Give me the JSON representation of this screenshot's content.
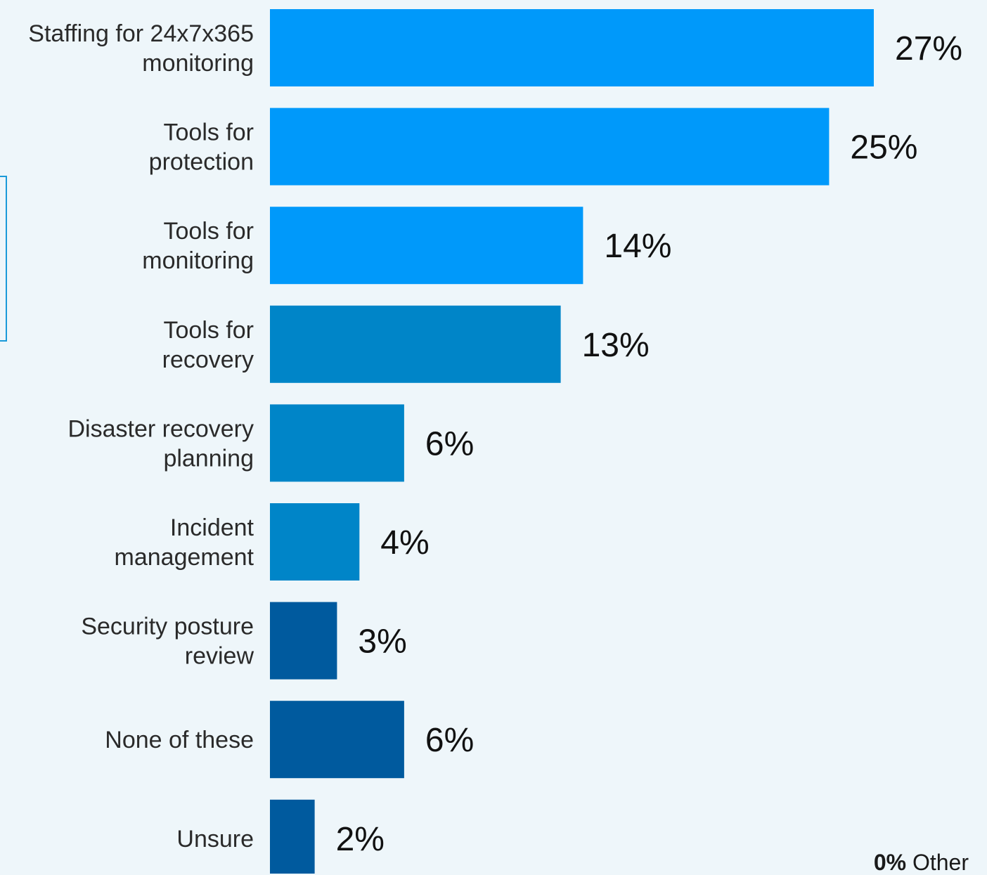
{
  "chart_data": {
    "type": "bar",
    "orientation": "horizontal",
    "categories": [
      [
        "Staffing for 24x7x365",
        "monitoring"
      ],
      [
        "Tools for",
        "protection"
      ],
      [
        "Tools for",
        "monitoring"
      ],
      [
        "Tools for",
        "recovery"
      ],
      [
        "Disaster recovery",
        "planning"
      ],
      [
        "Incident",
        "management"
      ],
      [
        "Security posture",
        "review"
      ],
      [
        "None of these"
      ],
      [
        "Unsure"
      ]
    ],
    "values": [
      27,
      25,
      14,
      13,
      6,
      4,
      3,
      6,
      2
    ],
    "value_labels": [
      "27%",
      "25%",
      "14%",
      "13%",
      "6%",
      "4%",
      "3%",
      "6%",
      "2%"
    ],
    "bar_colors": [
      "#0099fa",
      "#0099fa",
      "#0099fa",
      "#0085c8",
      "#0085c8",
      "#0085c8",
      "#005a9e",
      "#005a9e",
      "#005a9e"
    ],
    "xlim": [
      0,
      27
    ],
    "grid": false,
    "legend": "none"
  },
  "footnote": {
    "value": "0%",
    "label": "Other"
  },
  "colors": {
    "background": "#eef6fa",
    "bracket": "#1a9ad9"
  }
}
